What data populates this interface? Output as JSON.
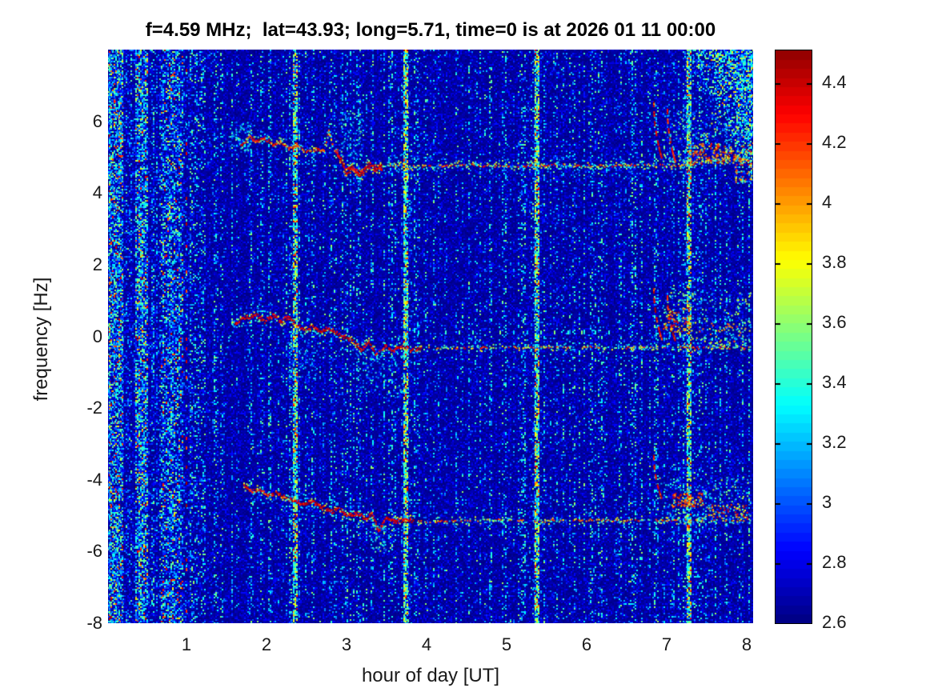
{
  "figure": {
    "background": "#ffffff"
  },
  "chart_data": {
    "type": "heatmap",
    "title": "f=4.59 MHz;  lat=43.93; long=5.71, time=0 is at 2026 01 11 00:00",
    "xlabel": "hour of day [UT]",
    "ylabel": "frequency [Hz]",
    "xlim": [
      0.02,
      8.08
    ],
    "ylim": [
      -8,
      8
    ],
    "clim": [
      2.6,
      4.51
    ],
    "colormap": "jet",
    "colormap_levels": 64,
    "grid": false,
    "legend": "colorbar-right",
    "xticks": [
      1,
      2,
      3,
      4,
      5,
      6,
      7,
      8
    ],
    "xtick_labels": [
      "1",
      "2",
      "3",
      "4",
      "5",
      "6",
      "7",
      "8"
    ],
    "yticks": [
      6,
      4,
      2,
      0,
      -2,
      -4,
      -6,
      -8
    ],
    "ytick_labels": [
      "6",
      "4",
      "2",
      "0",
      "-2",
      "-4",
      "-6",
      "-8"
    ],
    "colorbar_ticks": [
      4.4,
      4.2,
      4,
      3.8,
      3.6,
      3.4,
      3.2,
      3,
      2.8,
      2.6
    ],
    "colorbar_tick_labels": [
      "4.4",
      "4.2",
      "4",
      "3.8",
      "3.6",
      "3.4",
      "3.2",
      "3",
      "2.8",
      "2.6"
    ],
    "features": {
      "background_value_range": [
        2.6,
        2.75
      ],
      "left_noise_bands": [
        {
          "h0": 0.03,
          "h1": 0.2,
          "strength": 1.0
        },
        {
          "h0": 0.36,
          "h1": 0.52,
          "strength": 1.0
        },
        {
          "h0": 0.68,
          "h1": 0.96,
          "strength": 0.55
        }
      ],
      "dotted_column": {
        "hour": 1.0,
        "dot_value": 4.3
      },
      "vertical_interference_lines_hours": [
        2.36,
        3.74,
        5.38,
        7.28
      ],
      "tick_dash_row": {
        "f": 0.12,
        "h0": 3.9,
        "h1": 6.7,
        "spacing": 0.17
      },
      "noise_wedge": {
        "h0": 7.25,
        "f_at_h0": 8.05,
        "h1": 8.07,
        "f_at_h1": 4.3
      },
      "traces": [
        {
          "name": "upper-doppler-trace",
          "waypoints": [
            [
              1.62,
              5.55
            ],
            [
              1.7,
              5.35
            ],
            [
              1.78,
              5.6
            ],
            [
              1.88,
              5.45
            ],
            [
              1.98,
              5.55
            ],
            [
              2.08,
              5.35
            ],
            [
              2.18,
              5.45
            ],
            [
              2.28,
              5.25
            ],
            [
              2.38,
              5.35
            ],
            [
              2.5,
              5.15
            ],
            [
              2.62,
              5.25
            ],
            [
              2.72,
              5.2
            ],
            [
              2.78,
              5.75
            ],
            [
              2.84,
              5.3
            ],
            [
              2.92,
              5.0
            ],
            [
              3.0,
              4.6
            ],
            [
              3.08,
              4.75
            ],
            [
              3.18,
              4.55
            ],
            [
              3.28,
              4.8
            ],
            [
              3.38,
              4.7
            ],
            [
              3.5,
              4.78
            ],
            [
              4.0,
              4.75
            ],
            [
              4.5,
              4.8
            ],
            [
              5.0,
              4.76
            ],
            [
              5.5,
              4.8
            ],
            [
              6.0,
              4.77
            ],
            [
              6.5,
              4.8
            ],
            [
              7.0,
              4.78
            ],
            [
              7.3,
              4.8
            ],
            [
              7.6,
              4.9
            ],
            [
              7.9,
              4.95
            ],
            [
              8.06,
              4.9
            ]
          ],
          "zones": [
            [
              1.62,
              2.88,
              4,
              0.95
            ],
            [
              2.88,
              3.45,
              9,
              1.0
            ],
            [
              3.45,
              8.06,
              3.2,
              0.85
            ]
          ],
          "head_until": 1.68,
          "hooks": [
            {
              "h": 6.84,
              "f0": 6.55,
              "f1": 5.0
            },
            {
              "h": 7.01,
              "f0": 6.35,
              "f1": 4.9
            }
          ]
        },
        {
          "name": "center-doppler-trace",
          "waypoints": [
            [
              1.48,
              -0.65
            ],
            [
              1.53,
              -0.1
            ],
            [
              1.58,
              0.3
            ],
            [
              1.66,
              0.45
            ],
            [
              1.76,
              0.55
            ],
            [
              1.88,
              0.6
            ],
            [
              1.98,
              0.45
            ],
            [
              2.08,
              0.6
            ],
            [
              2.18,
              0.45
            ],
            [
              2.28,
              0.55
            ],
            [
              2.38,
              0.35
            ],
            [
              2.48,
              0.2
            ],
            [
              2.58,
              0.3
            ],
            [
              2.68,
              0.15
            ],
            [
              2.78,
              0.25
            ],
            [
              2.88,
              0.1
            ],
            [
              2.98,
              0.0
            ],
            [
              3.08,
              -0.1
            ],
            [
              3.18,
              -0.35
            ],
            [
              3.28,
              -0.15
            ],
            [
              3.38,
              -0.5
            ],
            [
              3.48,
              -0.25
            ],
            [
              3.58,
              -0.4
            ],
            [
              3.68,
              -0.25
            ],
            [
              3.8,
              -0.35
            ],
            [
              3.95,
              -0.3
            ],
            [
              4.4,
              -0.3
            ],
            [
              4.9,
              -0.28
            ],
            [
              5.4,
              -0.3
            ],
            [
              5.9,
              -0.28
            ],
            [
              6.4,
              -0.3
            ],
            [
              6.9,
              -0.27
            ],
            [
              7.4,
              -0.3
            ],
            [
              8.06,
              -0.28
            ]
          ],
          "zones": [
            [
              1.48,
              1.6,
              3,
              0.75
            ],
            [
              1.6,
              3.25,
              6,
              1.0
            ],
            [
              3.25,
              3.95,
              5,
              0.95
            ],
            [
              3.95,
              8.06,
              2.2,
              0.6
            ]
          ],
          "head_until": 1.6,
          "hooks": [
            {
              "h": 6.84,
              "f0": 1.35,
              "f1": -0.05
            },
            {
              "h": 7.01,
              "f0": 1.15,
              "f1": -0.1
            }
          ]
        },
        {
          "name": "lower-doppler-trace",
          "waypoints": [
            [
              1.72,
              -4.15
            ],
            [
              1.82,
              -4.3
            ],
            [
              1.92,
              -4.25
            ],
            [
              2.02,
              -4.4
            ],
            [
              2.12,
              -4.35
            ],
            [
              2.22,
              -4.45
            ],
            [
              2.32,
              -4.55
            ],
            [
              2.45,
              -4.65
            ],
            [
              2.58,
              -4.6
            ],
            [
              2.7,
              -4.75
            ],
            [
              2.82,
              -4.85
            ],
            [
              2.92,
              -4.8
            ],
            [
              3.02,
              -5.0
            ],
            [
              3.12,
              -4.9
            ],
            [
              3.22,
              -5.05
            ],
            [
              3.32,
              -4.95
            ],
            [
              3.4,
              -5.4
            ],
            [
              3.5,
              -5.05
            ],
            [
              3.62,
              -5.15
            ],
            [
              3.75,
              -5.1
            ],
            [
              3.9,
              -5.15
            ],
            [
              4.4,
              -5.12
            ],
            [
              4.9,
              -5.1
            ],
            [
              5.4,
              -5.13
            ],
            [
              5.9,
              -5.1
            ],
            [
              6.4,
              -5.12
            ],
            [
              6.9,
              -5.1
            ],
            [
              7.4,
              -5.12
            ],
            [
              8.06,
              -5.1
            ]
          ],
          "zones": [
            [
              1.72,
              2.35,
              4,
              0.95
            ],
            [
              2.35,
              3.85,
              6,
              1.0
            ],
            [
              3.85,
              8.06,
              2.2,
              0.6
            ]
          ],
          "head_until": 0,
          "hooks": [
            {
              "h": 6.84,
              "f0": -3.3,
              "f1": -4.5
            }
          ]
        }
      ],
      "scatter_clusters": [
        {
          "h0": 1.52,
          "h1": 1.8,
          "f0": 5.2,
          "f1": 6.0,
          "n": 70,
          "v0": 2.85,
          "v1": 3.5
        },
        {
          "h0": 2.9,
          "h1": 3.2,
          "f0": 5.0,
          "f1": 6.3,
          "n": 80,
          "v0": 2.85,
          "v1": 3.6
        },
        {
          "h0": 6.95,
          "h1": 8.05,
          "f0": 4.85,
          "f1": 6.3,
          "n": 240,
          "v0": 2.85,
          "v1": 3.8
        },
        {
          "h0": 2.25,
          "h1": 2.65,
          "f0": -1.3,
          "f1": -0.1,
          "n": 80,
          "v0": 2.8,
          "v1": 3.3
        },
        {
          "h0": 3.1,
          "h1": 3.7,
          "f0": -1.7,
          "f1": -0.3,
          "n": 130,
          "v0": 2.8,
          "v1": 3.5
        },
        {
          "h0": 6.9,
          "h1": 8.05,
          "f0": -0.25,
          "f1": 1.25,
          "n": 220,
          "v0": 2.85,
          "v1": 3.8
        },
        {
          "h0": 6.9,
          "h1": 8.05,
          "f0": -5.2,
          "f1": -3.9,
          "n": 200,
          "v0": 2.85,
          "v1": 3.7
        },
        {
          "h0": 3.28,
          "h1": 3.48,
          "f0": -6.0,
          "f1": -5.2,
          "n": 60,
          "v0": 2.85,
          "v1": 3.7
        },
        {
          "h0": 7.25,
          "h1": 7.65,
          "f0": 4.85,
          "f1": 5.4,
          "n": 90,
          "v0": 3.8,
          "v1": 4.5
        },
        {
          "h0": 7.65,
          "h1": 8.05,
          "f0": 4.8,
          "f1": 5.35,
          "n": 70,
          "v0": 3.4,
          "v1": 4.45
        },
        {
          "h0": 6.95,
          "h1": 7.3,
          "f0": 0.15,
          "f1": 0.8,
          "n": 70,
          "v0": 3.8,
          "v1": 4.5
        },
        {
          "h0": 7.4,
          "h1": 8.05,
          "f0": -0.35,
          "f1": 0.45,
          "n": 60,
          "v0": 3.3,
          "v1": 4.3
        },
        {
          "h0": 7.05,
          "h1": 7.45,
          "f0": -4.75,
          "f1": -4.35,
          "n": 90,
          "v0": 3.8,
          "v1": 4.5
        },
        {
          "h0": 7.5,
          "h1": 8.0,
          "f0": -5.05,
          "f1": -4.65,
          "n": 60,
          "v0": 3.5,
          "v1": 4.45
        },
        {
          "h0": 7.85,
          "h1": 8.06,
          "f0": 4.3,
          "f1": 5.0,
          "n": 40,
          "v0": 3.5,
          "v1": 4.35
        }
      ]
    }
  }
}
